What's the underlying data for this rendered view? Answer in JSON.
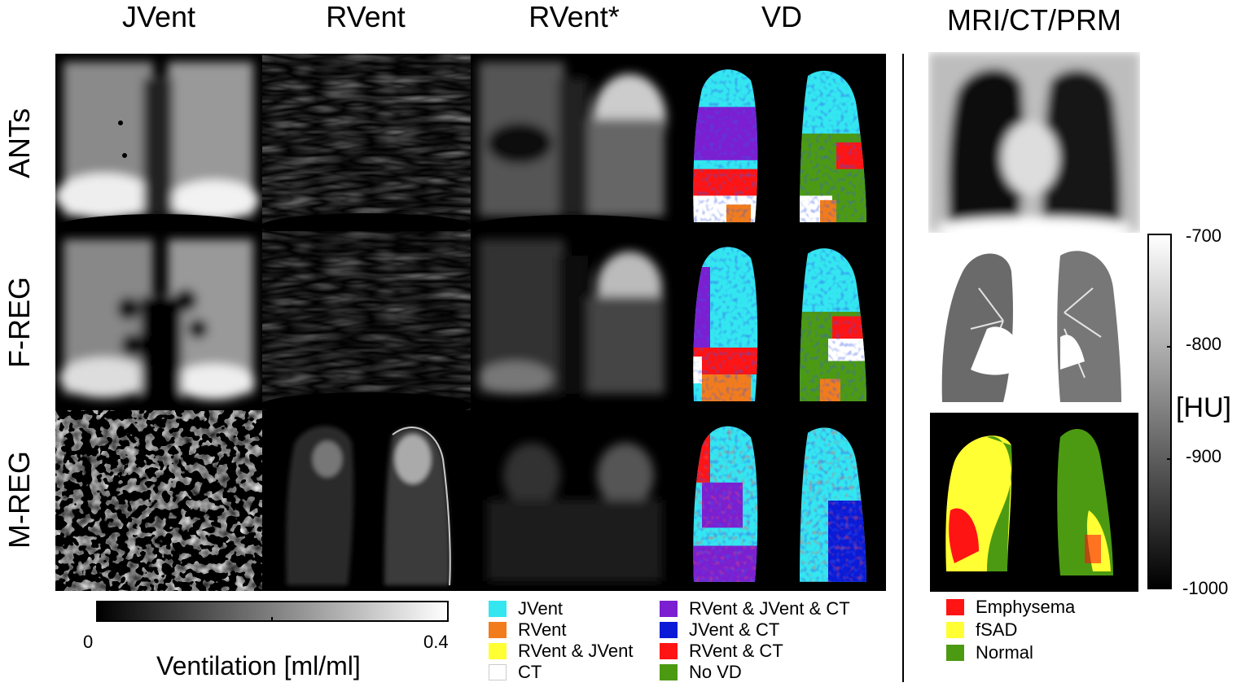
{
  "columns": [
    "JVent",
    "RVent",
    "RVent*",
    "VD",
    "MRI/CT/PRM"
  ],
  "rows": [
    "ANTs",
    "F-REG",
    "M-REG"
  ],
  "ventilation_colorbar": {
    "label": "Ventilation [ml/ml]",
    "min": "0",
    "max": "0.4"
  },
  "hu_colorbar": {
    "label": "[HU]",
    "ticks": [
      "-700",
      "-800",
      "-900",
      "-1000"
    ]
  },
  "vd_legend": [
    {
      "label": "JVent",
      "color": "#33e6f0"
    },
    {
      "label": "RVent",
      "color": "#f27c1c"
    },
    {
      "label": "RVent & JVent",
      "color": "#ffff33"
    },
    {
      "label": "CT",
      "color": "#ffffff"
    },
    {
      "label": "RVent & JVent & CT",
      "color": "#7b1fd1"
    },
    {
      "label": "JVent & CT",
      "color": "#0a1ad6"
    },
    {
      "label": "RVent & CT",
      "color": "#ff1414"
    },
    {
      "label": "No VD",
      "color": "#4c9a12"
    }
  ],
  "prm_legend": [
    {
      "label": "Emphysema",
      "color": "#ff1414"
    },
    {
      "label": "fSAD",
      "color": "#ffff33"
    },
    {
      "label": "Normal",
      "color": "#4c9a12"
    }
  ]
}
